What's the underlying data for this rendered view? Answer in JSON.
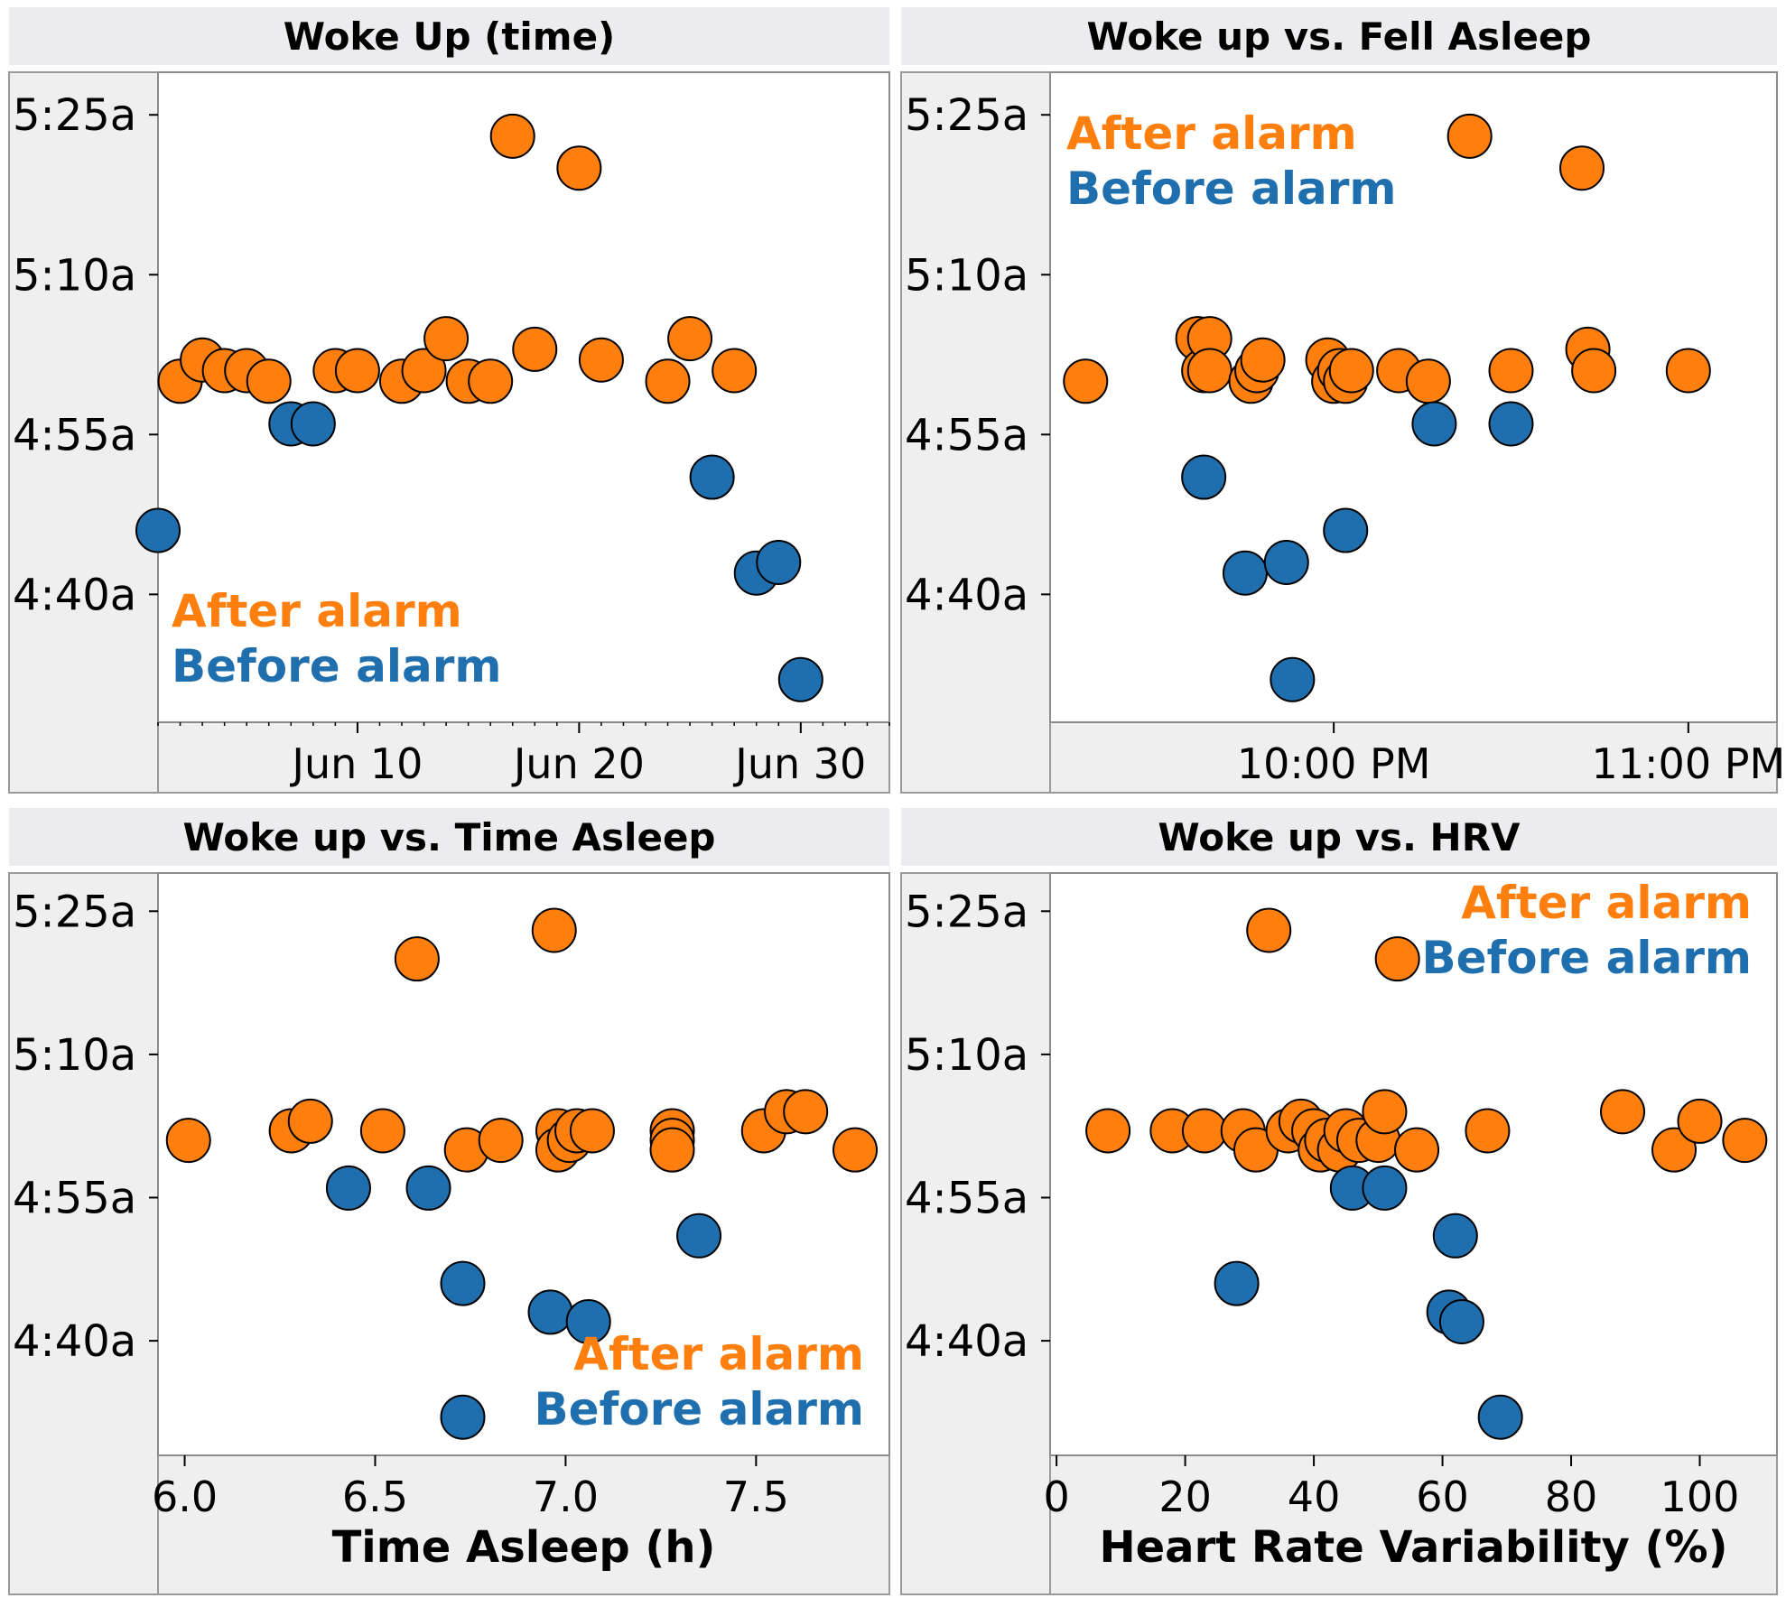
{
  "colors": {
    "after": "#ff7f0e",
    "before": "#1f6fae",
    "panel_header": "#ececef",
    "axis_bg": "#efefef"
  },
  "legend": {
    "after": "After alarm",
    "before": "Before alarm"
  },
  "chart_data": [
    {
      "id": "woke-up-time",
      "type": "scatter",
      "title": "Woke Up (time)",
      "xlabel": "",
      "ylabel": "",
      "x_type": "date",
      "xlim": [
        "2023-06-01",
        "2023-07-04"
      ],
      "xticks": [
        {
          "value": "2023-06-10",
          "label": "Jun 10"
        },
        {
          "value": "2023-06-20",
          "label": "Jun 20"
        },
        {
          "value": "2023-06-30",
          "label": "Jun 30"
        }
      ],
      "ylim": [
        "4:28a",
        "5:29a"
      ],
      "yticks": [
        "4:40a",
        "4:55a",
        "5:10a",
        "5:25a"
      ],
      "legend_position": "bottom-left",
      "grid": false,
      "series": [
        {
          "name": "After alarm",
          "key": "after",
          "points": [
            {
              "x": "2023-06-02",
              "y": "5:00a"
            },
            {
              "x": "2023-06-03",
              "y": "5:02a"
            },
            {
              "x": "2023-06-04",
              "y": "5:01a"
            },
            {
              "x": "2023-06-05",
              "y": "5:01a"
            },
            {
              "x": "2023-06-06",
              "y": "5:00a"
            },
            {
              "x": "2023-06-09",
              "y": "5:01a"
            },
            {
              "x": "2023-06-10",
              "y": "5:01a"
            },
            {
              "x": "2023-06-12",
              "y": "5:00a"
            },
            {
              "x": "2023-06-13",
              "y": "5:01a"
            },
            {
              "x": "2023-06-14",
              "y": "5:04a"
            },
            {
              "x": "2023-06-15",
              "y": "5:00a"
            },
            {
              "x": "2023-06-16",
              "y": "5:00a"
            },
            {
              "x": "2023-06-17",
              "y": "5:23a"
            },
            {
              "x": "2023-06-18",
              "y": "5:03a"
            },
            {
              "x": "2023-06-20",
              "y": "5:20a"
            },
            {
              "x": "2023-06-21",
              "y": "5:02a"
            },
            {
              "x": "2023-06-24",
              "y": "5:00a"
            },
            {
              "x": "2023-06-25",
              "y": "5:04a"
            },
            {
              "x": "2023-06-27",
              "y": "5:01a"
            }
          ]
        },
        {
          "name": "Before alarm",
          "key": "before",
          "points": [
            {
              "x": "2023-06-01",
              "y": "4:46a"
            },
            {
              "x": "2023-06-07",
              "y": "4:56a"
            },
            {
              "x": "2023-06-08",
              "y": "4:56a"
            },
            {
              "x": "2023-06-26",
              "y": "4:51a"
            },
            {
              "x": "2023-06-28",
              "y": "4:42a"
            },
            {
              "x": "2023-06-29",
              "y": "4:43a"
            },
            {
              "x": "2023-06-30",
              "y": "4:32a"
            }
          ]
        }
      ]
    },
    {
      "id": "woke-up-vs-fell-asleep",
      "type": "scatter",
      "title": "Woke up vs. Fell Asleep",
      "xlabel": "",
      "ylabel": "",
      "x_type": "time",
      "xlim": [
        "9:12 PM",
        "11:15 PM"
      ],
      "xticks": [
        {
          "value": "10:00 PM",
          "label": "10:00 PM"
        },
        {
          "value": "11:00 PM",
          "label": "11:00 PM"
        }
      ],
      "ylim": [
        "4:28a",
        "5:29a"
      ],
      "yticks": [
        "4:40a",
        "4:55a",
        "5:10a",
        "5:25a"
      ],
      "legend_position": "top-left",
      "grid": false,
      "series": [
        {
          "name": "After alarm",
          "key": "after",
          "points": [
            {
              "x": "9:18 PM",
              "y": "5:00a"
            },
            {
              "x": "9:37 PM",
              "y": "5:04a"
            },
            {
              "x": "9:38 PM",
              "y": "5:01a"
            },
            {
              "x": "9:39 PM",
              "y": "5:04a"
            },
            {
              "x": "9:39 PM",
              "y": "5:01a"
            },
            {
              "x": "9:46 PM",
              "y": "5:00a"
            },
            {
              "x": "9:47 PM",
              "y": "5:01a"
            },
            {
              "x": "9:48 PM",
              "y": "5:02a"
            },
            {
              "x": "9:59 PM",
              "y": "5:02a"
            },
            {
              "x": "10:00 PM",
              "y": "5:00a"
            },
            {
              "x": "10:01 PM",
              "y": "5:01a"
            },
            {
              "x": "10:02 PM",
              "y": "5:00a"
            },
            {
              "x": "10:03 PM",
              "y": "5:01a"
            },
            {
              "x": "10:11 PM",
              "y": "5:01a"
            },
            {
              "x": "10:16 PM",
              "y": "5:00a"
            },
            {
              "x": "10:23 PM",
              "y": "5:23a"
            },
            {
              "x": "10:30 PM",
              "y": "5:01a"
            },
            {
              "x": "10:42 PM",
              "y": "5:20a"
            },
            {
              "x": "10:43 PM",
              "y": "5:03a"
            },
            {
              "x": "10:44 PM",
              "y": "5:01a"
            },
            {
              "x": "11:00 PM",
              "y": "5:01a"
            }
          ]
        },
        {
          "name": "Before alarm",
          "key": "before",
          "points": [
            {
              "x": "9:38 PM",
              "y": "4:51a"
            },
            {
              "x": "9:45 PM",
              "y": "4:42a"
            },
            {
              "x": "9:52 PM",
              "y": "4:43a"
            },
            {
              "x": "9:53 PM",
              "y": "4:32a"
            },
            {
              "x": "10:02 PM",
              "y": "4:46a"
            },
            {
              "x": "10:17 PM",
              "y": "4:56a"
            },
            {
              "x": "10:30 PM",
              "y": "4:56a"
            }
          ]
        }
      ]
    },
    {
      "id": "woke-up-vs-time-asleep",
      "type": "scatter",
      "title": "Woke up vs. Time Asleep",
      "xlabel": "Time Asleep (h)",
      "ylabel": "",
      "x_type": "number",
      "xlim": [
        5.93,
        7.85
      ],
      "xticks": [
        {
          "value": 6.0,
          "label": "6.0"
        },
        {
          "value": 6.5,
          "label": "6.5"
        },
        {
          "value": 7.0,
          "label": "7.0"
        },
        {
          "value": 7.5,
          "label": "7.5"
        }
      ],
      "ylim": [
        "4:28a",
        "5:29a"
      ],
      "yticks": [
        "4:40a",
        "4:55a",
        "5:10a",
        "5:25a"
      ],
      "legend_position": "bottom-right",
      "grid": false,
      "series": [
        {
          "name": "After alarm",
          "key": "after",
          "points": [
            {
              "x": 6.01,
              "y": "5:01a"
            },
            {
              "x": 6.28,
              "y": "5:02a"
            },
            {
              "x": 6.33,
              "y": "5:03a"
            },
            {
              "x": 6.52,
              "y": "5:02a"
            },
            {
              "x": 6.61,
              "y": "5:20a"
            },
            {
              "x": 6.74,
              "y": "5:00a"
            },
            {
              "x": 6.83,
              "y": "5:01a"
            },
            {
              "x": 6.97,
              "y": "5:23a"
            },
            {
              "x": 6.98,
              "y": "5:02a"
            },
            {
              "x": 6.98,
              "y": "5:00a"
            },
            {
              "x": 7.01,
              "y": "5:01a"
            },
            {
              "x": 7.03,
              "y": "5:02a"
            },
            {
              "x": 7.07,
              "y": "5:02a"
            },
            {
              "x": 7.28,
              "y": "5:02a"
            },
            {
              "x": 7.28,
              "y": "5:01a"
            },
            {
              "x": 7.28,
              "y": "5:00a"
            },
            {
              "x": 7.52,
              "y": "5:02a"
            },
            {
              "x": 7.58,
              "y": "5:04a"
            },
            {
              "x": 7.63,
              "y": "5:04a"
            },
            {
              "x": 7.76,
              "y": "5:00a"
            }
          ]
        },
        {
          "name": "Before alarm",
          "key": "before",
          "points": [
            {
              "x": 6.43,
              "y": "4:56a"
            },
            {
              "x": 6.64,
              "y": "4:56a"
            },
            {
              "x": 6.73,
              "y": "4:46a"
            },
            {
              "x": 6.73,
              "y": "4:32a"
            },
            {
              "x": 6.96,
              "y": "4:43a"
            },
            {
              "x": 7.06,
              "y": "4:42a"
            },
            {
              "x": 7.35,
              "y": "4:51a"
            }
          ]
        }
      ]
    },
    {
      "id": "woke-up-vs-hrv",
      "type": "scatter",
      "title": "Woke up vs. HRV",
      "xlabel": "Heart Rate Variability (%)",
      "ylabel": "",
      "x_type": "number",
      "xlim": [
        -1,
        112
      ],
      "xticks": [
        {
          "value": 0,
          "label": "0"
        },
        {
          "value": 20,
          "label": "20"
        },
        {
          "value": 40,
          "label": "40"
        },
        {
          "value": 60,
          "label": "60"
        },
        {
          "value": 80,
          "label": "80"
        },
        {
          "value": 100,
          "label": "100"
        }
      ],
      "ylim": [
        "4:28a",
        "5:29a"
      ],
      "yticks": [
        "4:40a",
        "4:55a",
        "5:10a",
        "5:25a"
      ],
      "legend_position": "top-right",
      "grid": false,
      "series": [
        {
          "name": "After alarm",
          "key": "after",
          "points": [
            {
              "x": 8,
              "y": "5:02a"
            },
            {
              "x": 18,
              "y": "5:02a"
            },
            {
              "x": 23,
              "y": "5:02a"
            },
            {
              "x": 29,
              "y": "5:02a"
            },
            {
              "x": 31,
              "y": "5:00a"
            },
            {
              "x": 33,
              "y": "5:23a"
            },
            {
              "x": 36,
              "y": "5:02a"
            },
            {
              "x": 38,
              "y": "5:03a"
            },
            {
              "x": 40,
              "y": "5:02a"
            },
            {
              "x": 41,
              "y": "5:00a"
            },
            {
              "x": 42,
              "y": "5:01a"
            },
            {
              "x": 44,
              "y": "5:00a"
            },
            {
              "x": 45,
              "y": "5:02a"
            },
            {
              "x": 47,
              "y": "5:01a"
            },
            {
              "x": 50,
              "y": "5:01a"
            },
            {
              "x": 51,
              "y": "5:04a"
            },
            {
              "x": 53,
              "y": "5:20a"
            },
            {
              "x": 56,
              "y": "5:00a"
            },
            {
              "x": 67,
              "y": "5:02a"
            },
            {
              "x": 88,
              "y": "5:04a"
            },
            {
              "x": 96,
              "y": "5:00a"
            },
            {
              "x": 100,
              "y": "5:03a"
            },
            {
              "x": 107,
              "y": "5:01a"
            }
          ]
        },
        {
          "name": "Before alarm",
          "key": "before",
          "points": [
            {
              "x": 28,
              "y": "4:46a"
            },
            {
              "x": 46,
              "y": "4:56a"
            },
            {
              "x": 51,
              "y": "4:56a"
            },
            {
              "x": 61,
              "y": "4:43a"
            },
            {
              "x": 62,
              "y": "4:51a"
            },
            {
              "x": 63,
              "y": "4:42a"
            },
            {
              "x": 69,
              "y": "4:32a"
            }
          ]
        }
      ]
    }
  ]
}
